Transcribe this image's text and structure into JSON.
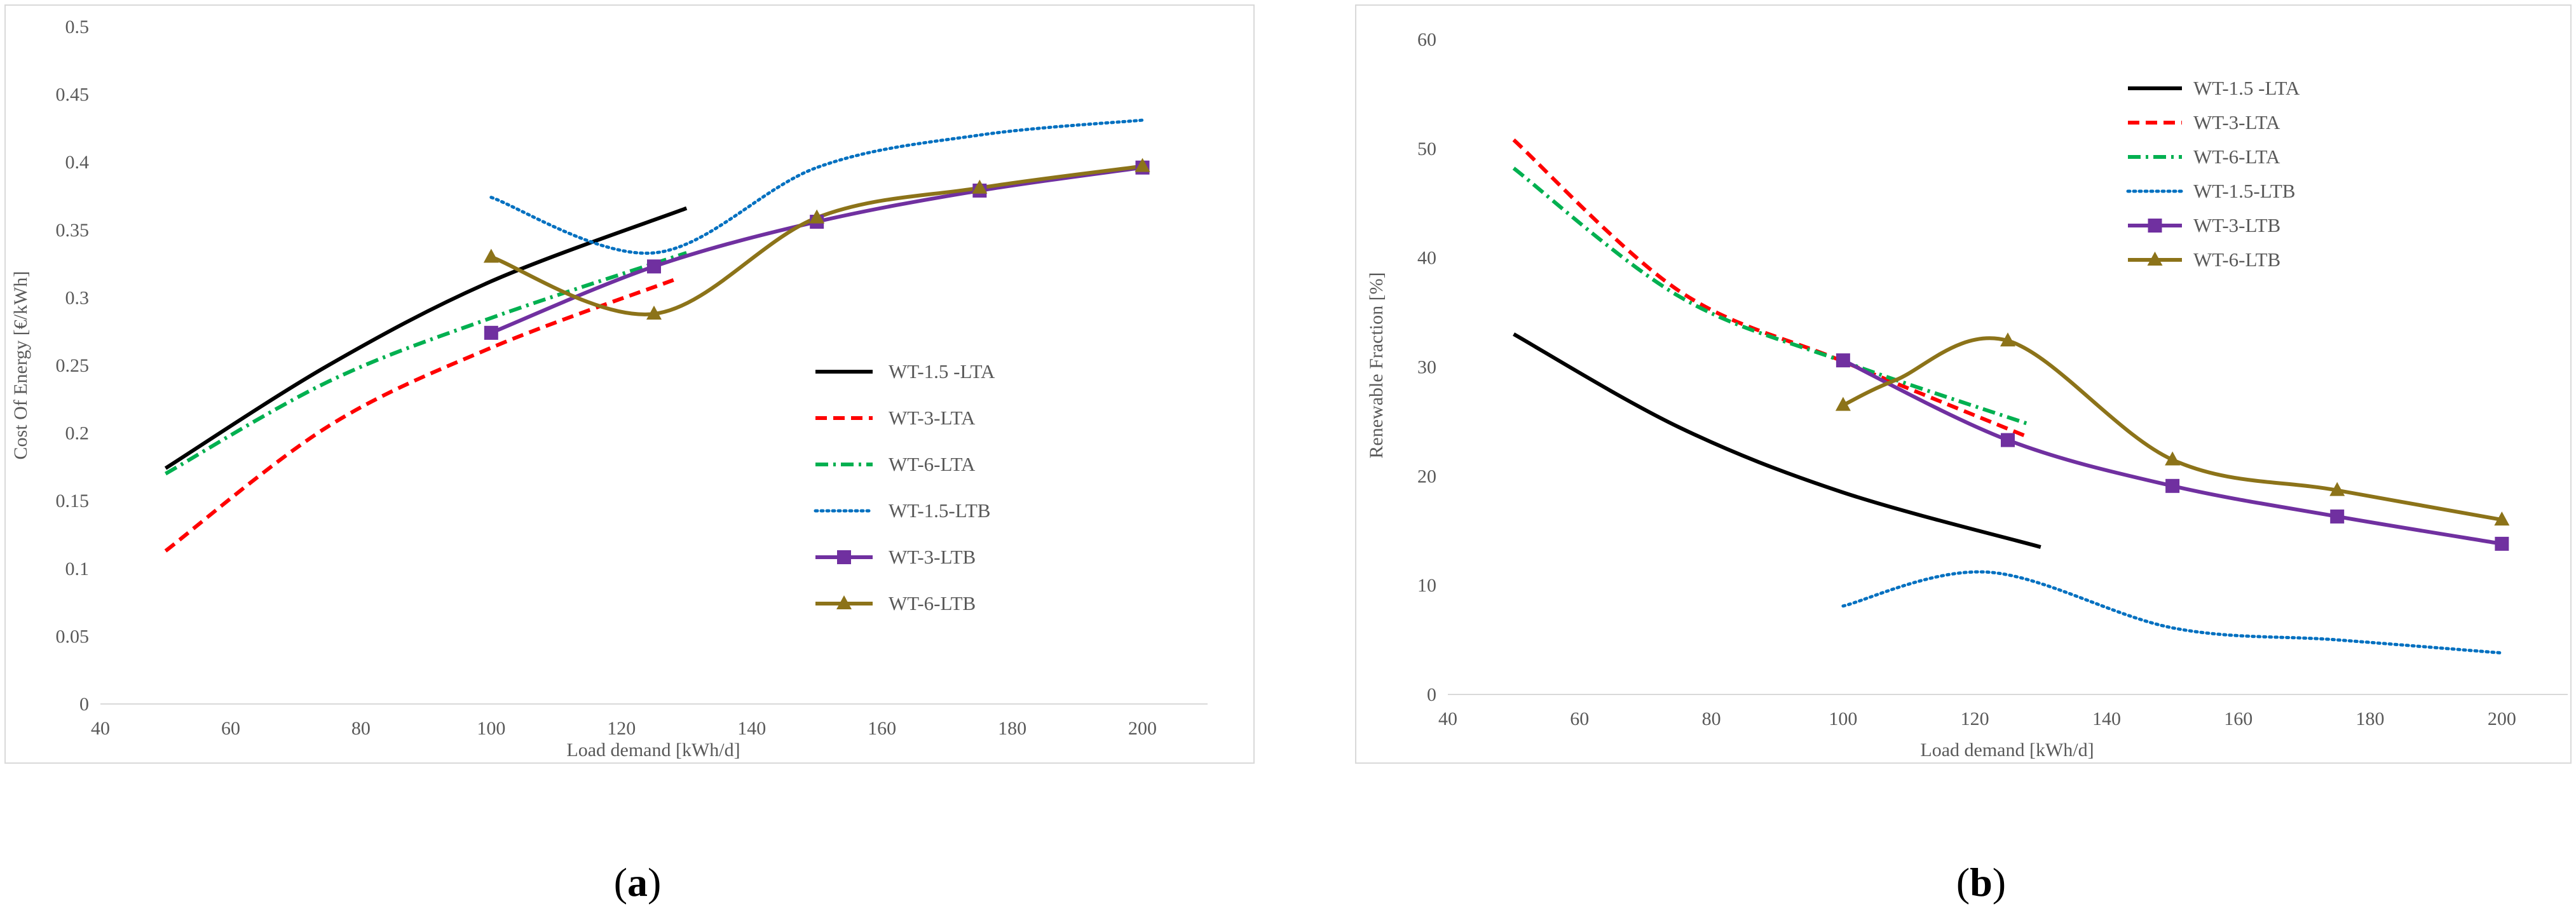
{
  "colors": {
    "WT-1.5 -LTA": "#000000",
    "WT-3-LTA": "#ff0000",
    "WT-6-LTA": "#00b050",
    "WT-1.5-LTB": "#0070c0",
    "WT-3-LTB": "#7030a0",
    "WT-6-LTB": "#8c7319"
  },
  "chart_data": [
    {
      "type": "line",
      "panel_label": "(a)",
      "xlabel": "Load demand [kWh/d]",
      "ylabel": "Cost Of Energy [€/kWh]",
      "xlim": [
        40,
        210
      ],
      "ylim": [
        0,
        0.5
      ],
      "x_ticks": [
        40,
        60,
        80,
        100,
        120,
        140,
        160,
        180,
        200
      ],
      "x_tick_labels": [
        "40",
        "60",
        "80",
        "100",
        "120",
        "140",
        "160",
        "180",
        "200"
      ],
      "y_ticks": [
        0,
        0.05,
        0.1,
        0.15,
        0.2,
        0.25,
        0.3,
        0.35,
        0.4,
        0.45,
        0.5
      ],
      "y_tick_labels": [
        "0",
        "0.05",
        "0.1",
        "0.15",
        "0.2",
        "0.25",
        "0.3",
        "0.35",
        "0.4",
        "0.45",
        "0.5"
      ],
      "legend_position": "right",
      "series": [
        {
          "name": "WT-1.5 -LTA",
          "style": "solid",
          "marker": "none",
          "x": [
            50,
            75,
            100,
            130
          ],
          "y": [
            0.174,
            0.25,
            0.312,
            0.366
          ]
        },
        {
          "name": "WT-3-LTA",
          "style": "dash",
          "marker": "none",
          "x": [
            50,
            75,
            100,
            128
          ],
          "y": [
            0.113,
            0.205,
            0.263,
            0.313
          ]
        },
        {
          "name": "WT-6-LTA",
          "style": "dashdot",
          "marker": "none",
          "x": [
            50,
            75,
            100,
            130
          ],
          "y": [
            0.17,
            0.238,
            0.285,
            0.333
          ]
        },
        {
          "name": "WT-1.5-LTB",
          "style": "dot",
          "marker": "none",
          "x": [
            100,
            125,
            150,
            175,
            200
          ],
          "y": [
            0.374,
            0.333,
            0.396,
            0.42,
            0.431
          ]
        },
        {
          "name": "WT-3-LTB",
          "style": "solid",
          "marker": "square",
          "x": [
            100,
            125,
            150,
            175,
            200
          ],
          "y": [
            0.274,
            0.323,
            0.356,
            0.379,
            0.396
          ]
        },
        {
          "name": "WT-6-LTB",
          "style": "solid",
          "marker": "triangle",
          "x": [
            100,
            125,
            150,
            175,
            200
          ],
          "y": [
            0.33,
            0.288,
            0.359,
            0.381,
            0.397
          ]
        }
      ]
    },
    {
      "type": "line",
      "panel_label": "(b)",
      "xlabel": "Load demand [kWh/d]",
      "ylabel": "Renewable Fraction [%]",
      "xlim": [
        40,
        210
      ],
      "ylim": [
        0,
        60
      ],
      "x_ticks": [
        40,
        60,
        80,
        100,
        120,
        140,
        160,
        180,
        200
      ],
      "x_tick_labels": [
        "40",
        "60",
        "80",
        "100",
        "120",
        "140",
        "160",
        "180",
        "200"
      ],
      "y_ticks": [
        0,
        10,
        20,
        30,
        40,
        50,
        60
      ],
      "y_tick_labels": [
        "0",
        "10",
        "20",
        "30",
        "40",
        "50",
        "60"
      ],
      "legend_position": "top-center",
      "series": [
        {
          "name": "WT-1.5 -LTA",
          "style": "solid",
          "marker": "none",
          "x": [
            50,
            75,
            100,
            130
          ],
          "y": [
            33,
            24.5,
            18.5,
            13.5
          ]
        },
        {
          "name": "WT-3-LTA",
          "style": "dash",
          "marker": "none",
          "x": [
            50,
            75,
            100,
            128
          ],
          "y": [
            50.8,
            37,
            30.5,
            23.6
          ]
        },
        {
          "name": "WT-6-LTA",
          "style": "dashdot",
          "marker": "none",
          "x": [
            50,
            75,
            100,
            128
          ],
          "y": [
            48.2,
            36.5,
            30.5,
            24.8
          ]
        },
        {
          "name": "WT-1.5-LTB",
          "style": "dot",
          "marker": "none",
          "x": [
            100,
            122,
            150,
            175,
            200
          ],
          "y": [
            8.1,
            11.2,
            6.1,
            5,
            3.8
          ]
        },
        {
          "name": "WT-3-LTB",
          "style": "solid",
          "marker": "square",
          "x": [
            100,
            125,
            150,
            175,
            200
          ],
          "y": [
            30.6,
            23.3,
            19.1,
            16.3,
            13.8
          ]
        },
        {
          "name": "WT-6-LTB",
          "style": "solid",
          "marker": "triangle",
          "x": [
            100,
            108,
            125,
            150,
            175,
            200
          ],
          "y": [
            26.5,
            28.8,
            32.4,
            21.5,
            18.7,
            16
          ]
        }
      ]
    }
  ]
}
